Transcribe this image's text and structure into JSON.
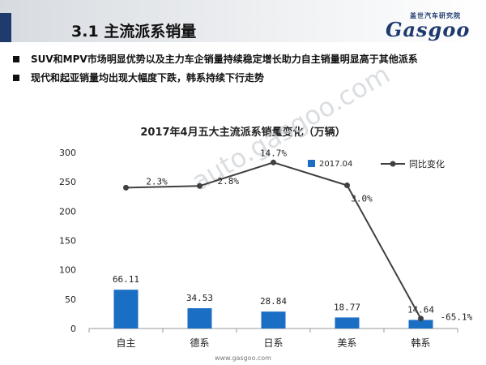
{
  "header": {
    "section_title": "3.1   主流派系销量",
    "logo_cn": "盖世汽车研究院",
    "logo_en": "Gasgoo"
  },
  "bullets": [
    "SUV和MPV市场明显优势以及主力车企销量持续稳定增长助力自主销量明显高于其他派系",
    "现代和起亚销量均出现大幅度下跌，韩系持续下行走势"
  ],
  "watermark": "auto.gasgoo.com",
  "footer": {
    "url": "www.gasgoo.com"
  },
  "colors": {
    "bar": "#1a6fc4",
    "line": "#404040",
    "header_accent": "#1f3b6e"
  },
  "chart_data": {
    "type": "bar",
    "title": "2017年4月五大主流派系销量变化（万辆）",
    "categories": [
      "自主",
      "德系",
      "日系",
      "美系",
      "韩系"
    ],
    "ylim": [
      0,
      300
    ],
    "yticks": [
      0,
      50,
      100,
      150,
      200,
      250,
      300
    ],
    "legend_position": "top-right",
    "series": [
      {
        "name": "2017.04",
        "kind": "bar",
        "values": [
          66.11,
          34.53,
          28.84,
          18.77,
          14.64
        ],
        "labels": [
          "66.11",
          "34.53",
          "28.84",
          "18.77",
          "14.64"
        ]
      },
      {
        "name": "同比变化",
        "kind": "line",
        "values": [
          2.3,
          2.8,
          14.7,
          3.0,
          -65.1
        ],
        "plot_y": [
          240,
          243,
          283,
          244,
          17
        ],
        "labels": [
          "2.3%",
          "2.8%",
          "14.7%",
          "3.0%",
          "-65.1%"
        ]
      }
    ]
  }
}
